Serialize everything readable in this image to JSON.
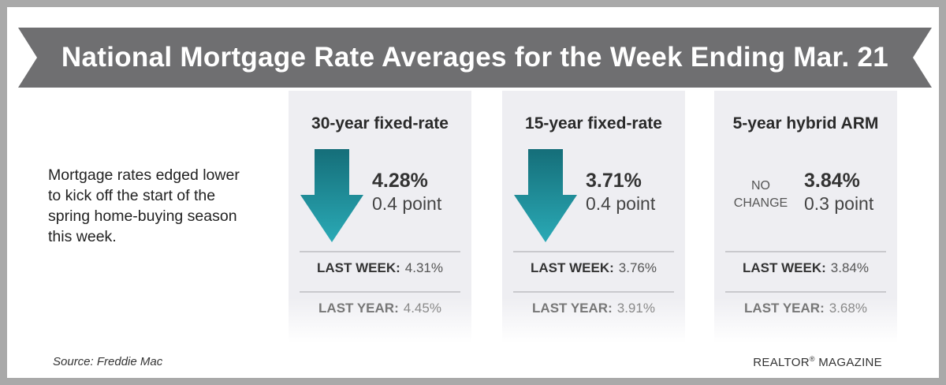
{
  "banner": {
    "title": "National Mortgage Rate Averages for the Week Ending Mar. 21",
    "color": "#6f6f71"
  },
  "intro_text": "Mortgage rates edged lower to kick off the start of the spring home-buying season this week.",
  "cards": [
    {
      "title": "30-year fixed-rate",
      "direction": "down",
      "rate": "4.28%",
      "change": "0.4 point",
      "last_week_label": "LAST WEEK:",
      "last_week_value": "4.31%",
      "last_year_label": "LAST YEAR:",
      "last_year_value": "4.45%"
    },
    {
      "title": "15-year fixed-rate",
      "direction": "down",
      "rate": "3.71%",
      "change": "0.4 point",
      "last_week_label": "LAST WEEK:",
      "last_week_value": "3.76%",
      "last_year_label": "LAST YEAR:",
      "last_year_value": "3.91%"
    },
    {
      "title": "5-year hybrid ARM",
      "direction": "none",
      "status_line1": "NO",
      "status_line2": "CHANGE",
      "rate": "3.84%",
      "change": "0.3 point",
      "last_week_label": "LAST WEEK:",
      "last_week_value": "3.84%",
      "last_year_label": "LAST YEAR:",
      "last_year_value": "3.68%"
    }
  ],
  "arrow_color": "#1f96a3",
  "source": "Source: Freddie Mac",
  "brand": {
    "name": "REALTOR",
    "mark": "®",
    "suffix": " MAGAZINE"
  }
}
